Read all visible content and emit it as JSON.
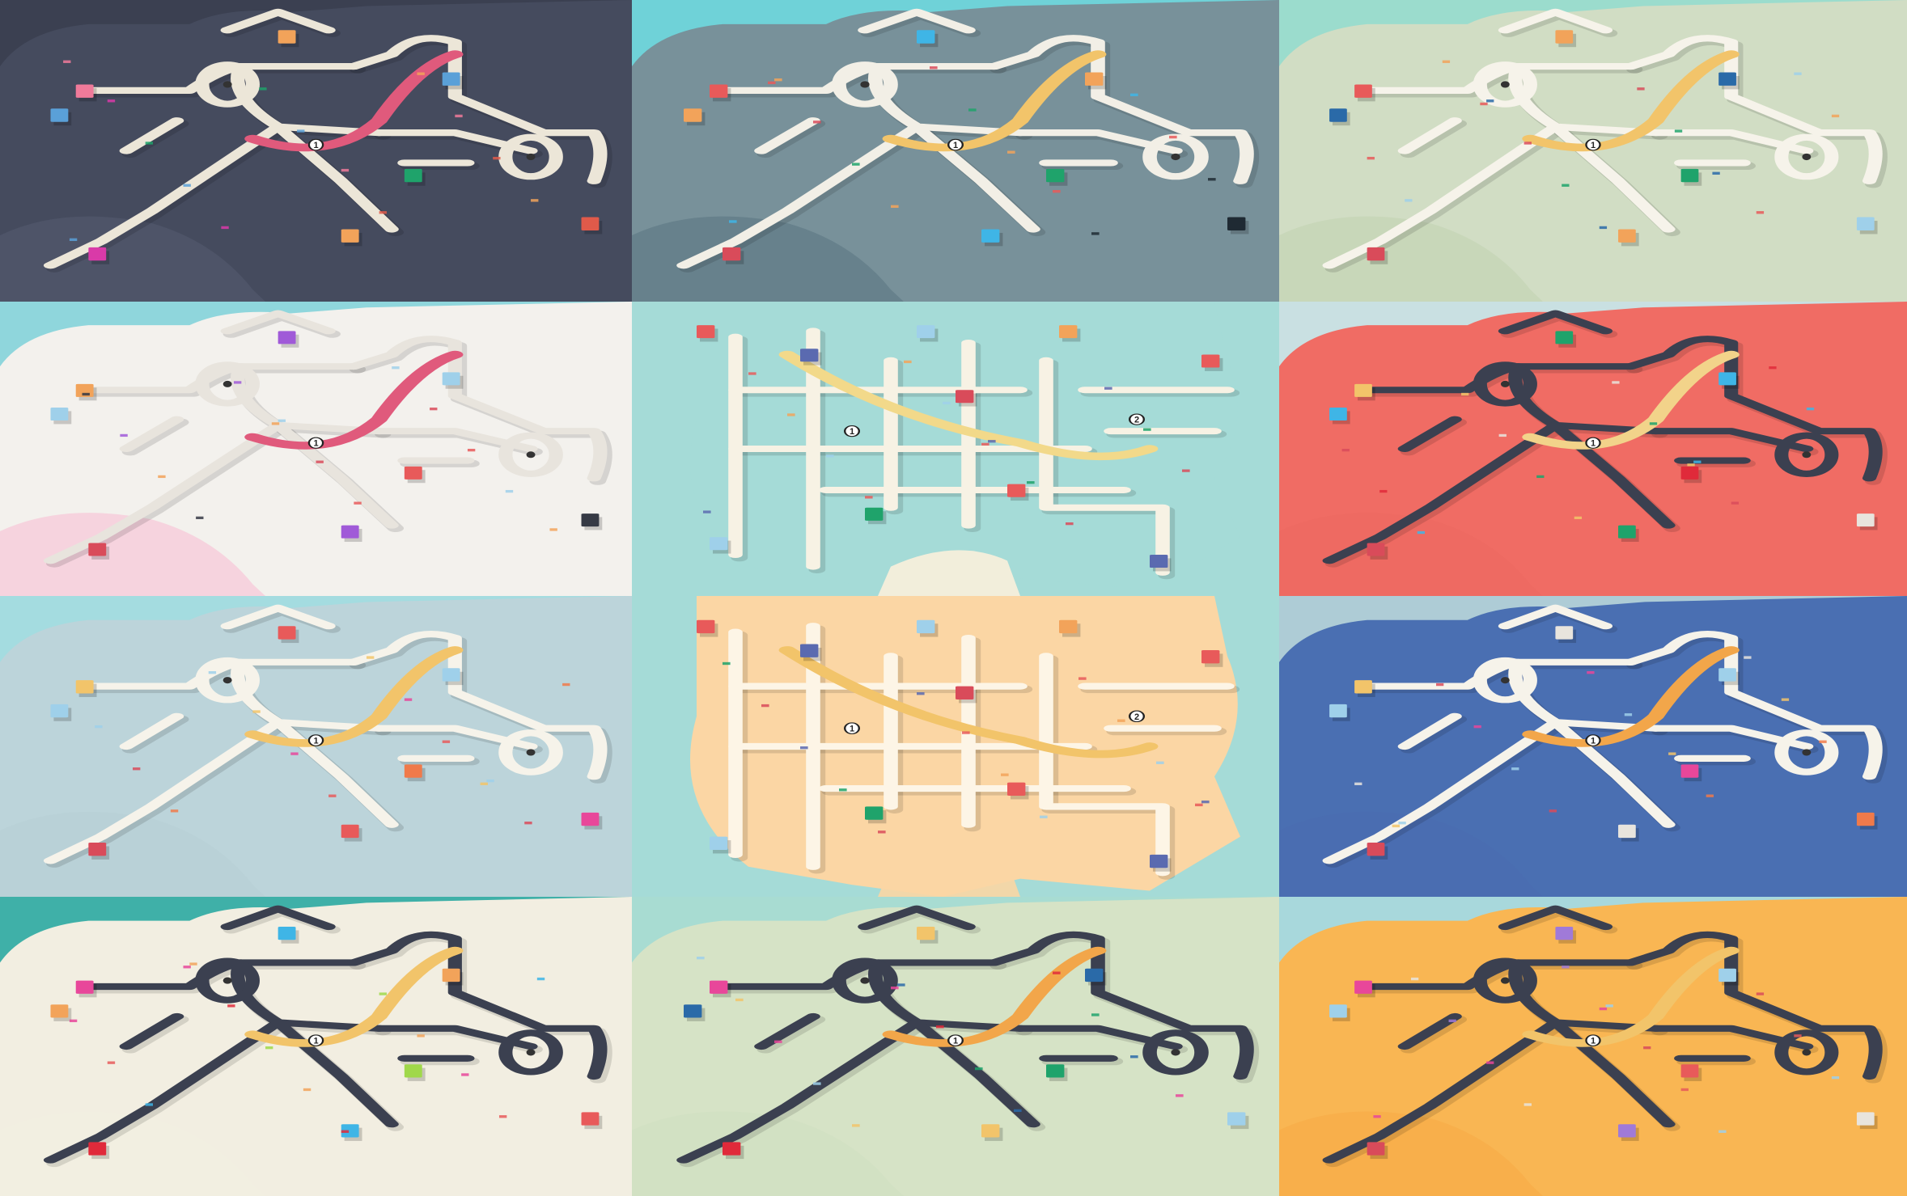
{
  "gallery": {
    "title": "",
    "tiles": [
      {
        "theme": "night",
        "bg": "#454b5e",
        "sea": "#3b4051",
        "land": "#4f5569",
        "road": "#ece6d8",
        "ramp": "#e05a7c",
        "acc": [
          "#f07a9a",
          "#5aa0d8",
          "#f2a35a",
          "#1fa36b",
          "#e05a4a",
          "#d93aa8"
        ],
        "labels": [
          "1"
        ]
      },
      {
        "theme": "slate",
        "bg": "#78919a",
        "sea": "#6fd2d8",
        "land": "#65808b",
        "road": "#f2efe6",
        "ramp": "#f2c46a",
        "acc": [
          "#e85a5a",
          "#f2a35a",
          "#3fb5e6",
          "#1fa36b",
          "#1f2a33",
          "#d94b5a"
        ],
        "labels": [
          "1"
        ]
      },
      {
        "theme": "sage",
        "bg": "#d1ddc4",
        "sea": "#9bdccd",
        "land": "#c7d6b8",
        "road": "#f6f3ea",
        "ramp": "#f2c46a",
        "acc": [
          "#e85a5a",
          "#2a6aa8",
          "#f2a35a",
          "#1fa36b",
          "#9fd0ea",
          "#d94b5a"
        ],
        "labels": [
          "1"
        ]
      },
      {
        "theme": "snow",
        "bg": "#f3f1ed",
        "sea": "#8fd6dc",
        "land": "#f6cfdc",
        "road": "#e8e4dd",
        "ramp": "#e05a7c",
        "acc": [
          "#f2a35a",
          "#9fd0ea",
          "#a05ad8",
          "#e85a5a",
          "#363a45",
          "#d94b5a"
        ],
        "labels": [
          "1"
        ]
      },
      {
        "theme": "paper",
        "bg": "#a5dbd7",
        "sea": "#a5dbd7",
        "land": "#fbf0dc",
        "road": "#f7f2e4",
        "ramp": "#f2d98a",
        "acc": [
          "#e85a5a",
          "#5a6ab0",
          "#9fd0ea",
          "#d94b5a",
          "#f2a35a",
          "#1fa36b"
        ],
        "labels": [
          "1",
          "2"
        ]
      },
      {
        "theme": "coral",
        "bg": "#f06c64",
        "sea": "#c9e0e2",
        "land": "#ed6a62",
        "road": "#3b4050",
        "ramp": "#f2d38a",
        "acc": [
          "#f2c46a",
          "#3fb5e6",
          "#1fa36b",
          "#e02a3a",
          "#e8e4dd",
          "#d94b5a"
        ],
        "labels": [
          "1"
        ]
      },
      {
        "theme": "mist",
        "bg": "#bcd4da",
        "sea": "#a4dce0",
        "land": "#b8d0d6",
        "road": "#f6f3ea",
        "ramp": "#f2c46a",
        "acc": [
          "#f2c46a",
          "#9fd0ea",
          "#e85a5a",
          "#f07a4a",
          "#e8479a",
          "#d94b5a"
        ],
        "labels": [
          "1"
        ]
      },
      {
        "theme": "sand",
        "bg": "#fbd6a4",
        "sea": "#a5dbd7",
        "land": "#fbd6a4",
        "road": "#fdf5e6",
        "ramp": "#f2c46a",
        "acc": [
          "#e85a5a",
          "#5a6ab0",
          "#9fd0ea",
          "#d94b5a",
          "#f2a35a",
          "#1fa36b"
        ],
        "labels": [
          "1",
          "2"
        ]
      },
      {
        "theme": "ocean",
        "bg": "#4a6fb2",
        "sea": "#aeccd6",
        "land": "#4a6db0",
        "road": "#f6f3ea",
        "ramp": "#f2a64a",
        "acc": [
          "#f2c46a",
          "#9fd0ea",
          "#e8e4dd",
          "#e8479a",
          "#f07a4a",
          "#d94b5a"
        ],
        "labels": [
          "1"
        ]
      },
      {
        "theme": "cream",
        "bg": "#f2eee1",
        "sea": "#3fb0a8",
        "land": "#f2eee1",
        "road": "#3b4050",
        "ramp": "#f2c46a",
        "acc": [
          "#e8479a",
          "#f2a35a",
          "#3fb5e6",
          "#a0d84a",
          "#e85a5a",
          "#e02a3a"
        ],
        "labels": [
          "1"
        ]
      },
      {
        "theme": "mint",
        "bg": "#d6e3c6",
        "sea": "#a8dcd2",
        "land": "#d2e0c2",
        "road": "#3b4050",
        "ramp": "#f2a64a",
        "acc": [
          "#e8479a",
          "#2a6aa8",
          "#f2c46a",
          "#1fa36b",
          "#9fd0ea",
          "#e02a3a"
        ],
        "labels": [
          "1"
        ]
      },
      {
        "theme": "amber",
        "bg": "#f9b653",
        "sea": "#a8d8dc",
        "land": "#f7ae4a",
        "road": "#3b4050",
        "ramp": "#f2c46a",
        "acc": [
          "#e8479a",
          "#9fd0ea",
          "#a07ad8",
          "#e85a5a",
          "#e8e4dd",
          "#d94b5a"
        ],
        "labels": [
          "1"
        ]
      }
    ]
  }
}
